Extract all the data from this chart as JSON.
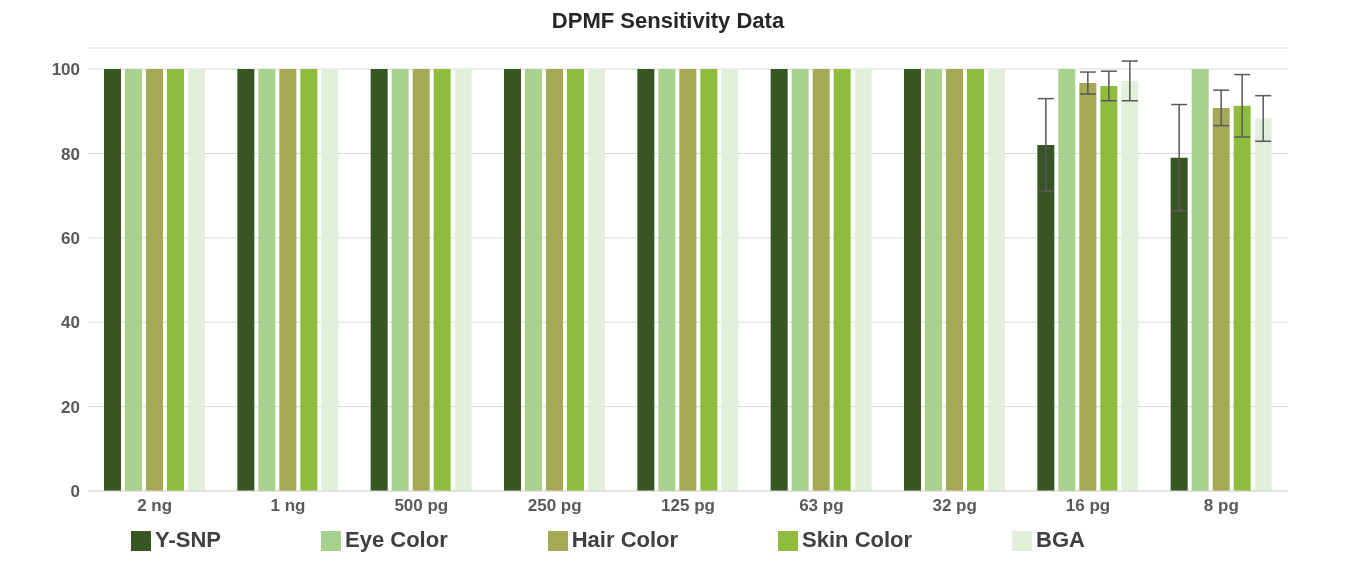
{
  "chart_data": {
    "type": "bar",
    "title": "DPMF Sensitivity Data",
    "categories": [
      "2 ng",
      "1 ng",
      "500 pg",
      "250 pg",
      "125 pg",
      "63 pg",
      "32 pg",
      "16 pg",
      "8 pg"
    ],
    "series": [
      {
        "name": "Y-SNP",
        "color": "#375623",
        "values": [
          100,
          100,
          100,
          100,
          100,
          100,
          100,
          82,
          79
        ],
        "errors": [
          0,
          0,
          0,
          0,
          0,
          0,
          0,
          11,
          12.6
        ]
      },
      {
        "name": "Eye Color",
        "color": "#a9d18e",
        "values": [
          100,
          100,
          100,
          100,
          100,
          100,
          100,
          100,
          100
        ],
        "errors": [
          0,
          0,
          0,
          0,
          0,
          0,
          0,
          0,
          0
        ]
      },
      {
        "name": "Hair Color",
        "color": "#a5a956",
        "values": [
          100,
          100,
          100,
          100,
          100,
          100,
          100,
          96.7,
          90.8
        ],
        "errors": [
          0,
          0,
          0,
          0,
          0,
          0,
          0,
          2.6,
          4.2
        ]
      },
      {
        "name": "Skin Color",
        "color": "#8fbc3c",
        "values": [
          100,
          100,
          100,
          100,
          100,
          100,
          100,
          96,
          91.3
        ],
        "errors": [
          0,
          0,
          0,
          0,
          0,
          0,
          0,
          3.5,
          7.4
        ]
      },
      {
        "name": "BGA",
        "color": "#e2efda",
        "values": [
          100,
          100,
          100,
          100,
          100,
          100,
          100,
          97.2,
          88.3
        ],
        "errors": [
          0,
          0,
          0,
          0,
          0,
          0,
          0,
          4.7,
          5.4
        ]
      }
    ],
    "ylim": [
      0,
      105
    ],
    "yticks": [
      0,
      20,
      40,
      60,
      80,
      100
    ],
    "grid": "y",
    "legend": "bottom"
  }
}
